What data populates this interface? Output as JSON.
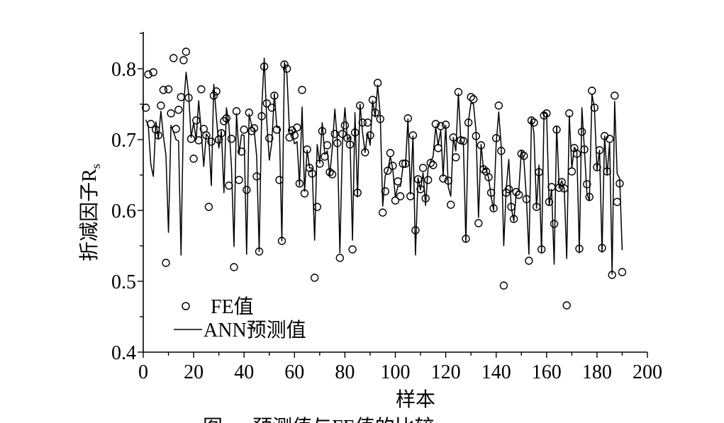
{
  "chart_data": {
    "type": "scatter",
    "xlabel": "样本",
    "ylabel": "折减因子R",
    "ylabel_sub": "s",
    "xlim": [
      0,
      200
    ],
    "ylim": [
      0.4,
      0.85
    ],
    "x_ticks": [
      "0",
      "20",
      "40",
      "60",
      "80",
      "100",
      "120",
      "140",
      "160",
      "180",
      "200"
    ],
    "y_ticks": [
      "0.4",
      "0.5",
      "0.6",
      "0.7",
      "0.8"
    ],
    "x_tick_values": [
      0,
      20,
      40,
      60,
      80,
      100,
      120,
      140,
      160,
      180,
      200
    ],
    "y_tick_values": [
      0.4,
      0.5,
      0.6,
      0.7,
      0.8
    ],
    "legend": [
      {
        "marker": "circle",
        "label": "FE值"
      },
      {
        "marker": "line",
        "label": "ANN预测值"
      }
    ],
    "caption_fragment": "图 … 预测值与FE值的比较",
    "series": [
      {
        "name": "FE值",
        "marker": "circle",
        "x": [
          1,
          2,
          3,
          4,
          5,
          6,
          7,
          8,
          9,
          10,
          11,
          12,
          13,
          14,
          15,
          16,
          17,
          18,
          19,
          20,
          21,
          22,
          23,
          24,
          25,
          26,
          27,
          28,
          29,
          30,
          31,
          32,
          33,
          34,
          35,
          36,
          37,
          38,
          39,
          40,
          41,
          42,
          43,
          44,
          45,
          46,
          47,
          48,
          49,
          50,
          51,
          52,
          53,
          54,
          55,
          56,
          57,
          58,
          59,
          60,
          61,
          62,
          63,
          64,
          65,
          66,
          67,
          68,
          69,
          70,
          71,
          72,
          73,
          74,
          75,
          76,
          77,
          78,
          79,
          80,
          81,
          82,
          83,
          84,
          85,
          86,
          87,
          88,
          89,
          90,
          91,
          92,
          93,
          94,
          95,
          96,
          97,
          98,
          99,
          100,
          101,
          102,
          103,
          104,
          105,
          106,
          107,
          108,
          109,
          110,
          111,
          112,
          113,
          114,
          115,
          116,
          117,
          118,
          119,
          120,
          121,
          122,
          123,
          124,
          125,
          126,
          127,
          128,
          129,
          130,
          131,
          132,
          133,
          134,
          135,
          136,
          137,
          138,
          139,
          140,
          141,
          142,
          143,
          144,
          145,
          146,
          147,
          148,
          149,
          150,
          151,
          152,
          153,
          154,
          155,
          156,
          157,
          158,
          159,
          160,
          161,
          162,
          163,
          164,
          165,
          166,
          167,
          168,
          169,
          170,
          171,
          172,
          173,
          174,
          175,
          176,
          177,
          178,
          179,
          180,
          181,
          182,
          183,
          184,
          185,
          186,
          187,
          188,
          189,
          190
        ],
        "y": [
          0.745,
          0.792,
          0.722,
          0.795,
          0.714,
          0.706,
          0.748,
          0.77,
          0.526,
          0.771,
          0.737,
          0.815,
          0.715,
          0.742,
          0.76,
          0.812,
          0.824,
          0.759,
          0.701,
          0.673,
          0.727,
          0.699,
          0.771,
          0.715,
          0.706,
          0.605,
          0.697,
          0.762,
          0.768,
          0.7,
          0.709,
          0.726,
          0.73,
          0.635,
          0.701,
          0.52,
          0.74,
          0.643,
          0.683,
          0.714,
          0.629,
          0.738,
          0.712,
          0.716,
          0.648,
          0.542,
          0.733,
          0.803,
          0.751,
          0.702,
          0.745,
          0.762,
          0.714,
          0.643,
          0.557,
          0.806,
          0.8,
          0.703,
          0.713,
          0.706,
          0.717,
          0.638,
          0.77,
          0.624,
          0.686,
          0.66,
          0.652,
          0.505,
          0.605,
          0.666,
          0.712,
          0.676,
          0.692,
          0.654,
          0.651,
          0.708,
          0.695,
          0.533,
          0.708,
          0.72,
          0.702,
          0.693,
          0.545,
          0.71,
          0.625,
          0.748,
          0.724,
          0.682,
          0.724,
          0.706,
          0.756,
          0.738,
          0.78,
          0.729,
          0.597,
          0.627,
          0.656,
          0.681,
          0.663,
          0.614,
          0.641,
          0.62,
          0.666,
          0.666,
          0.73,
          0.62,
          0.706,
          0.572,
          0.644,
          0.63,
          0.66,
          0.617,
          0.643,
          0.667,
          0.664,
          0.722,
          0.688,
          0.719,
          0.645,
          0.721,
          0.642,
          0.608,
          0.703,
          0.675,
          0.767,
          0.699,
          0.698,
          0.56,
          0.724,
          0.76,
          0.757,
          0.705,
          0.582,
          0.692,
          0.658,
          0.655,
          0.647,
          0.625,
          0.603,
          0.702,
          0.748,
          0.684,
          0.494,
          0.625,
          0.63,
          0.605,
          0.588,
          0.626,
          0.622,
          0.68,
          0.677,
          0.616,
          0.529,
          0.727,
          0.724,
          0.605,
          0.654,
          0.545,
          0.734,
          0.737,
          0.612,
          0.633,
          0.581,
          0.714,
          0.632,
          0.64,
          0.631,
          0.466,
          0.737,
          0.655,
          0.688,
          0.68,
          0.546,
          0.711,
          0.686,
          0.637,
          0.619,
          0.769,
          0.745,
          0.661,
          0.685,
          0.547,
          0.705,
          0.655,
          0.701,
          0.509,
          0.762,
          0.612,
          0.638,
          0.513
        ]
      },
      {
        "name": "ANN预测值",
        "marker": "line",
        "x": [
          1,
          2,
          3,
          4,
          5,
          6,
          7,
          8,
          9,
          10,
          11,
          12,
          13,
          14,
          15,
          16,
          17,
          18,
          19,
          20,
          21,
          22,
          23,
          24,
          25,
          26,
          27,
          28,
          29,
          30,
          31,
          32,
          33,
          34,
          35,
          36,
          37,
          38,
          39,
          40,
          41,
          42,
          43,
          44,
          45,
          46,
          47,
          48,
          49,
          50,
          51,
          52,
          53,
          54,
          55,
          56,
          57,
          58,
          59,
          60,
          61,
          62,
          63,
          64,
          65,
          66,
          67,
          68,
          69,
          70,
          71,
          72,
          73,
          74,
          75,
          76,
          77,
          78,
          79,
          80,
          81,
          82,
          83,
          84,
          85,
          86,
          87,
          88,
          89,
          90,
          91,
          92,
          93,
          94,
          95,
          96,
          97,
          98,
          99,
          100,
          101,
          102,
          103,
          104,
          105,
          106,
          107,
          108,
          109,
          110,
          111,
          112,
          113,
          114,
          115,
          116,
          117,
          118,
          119,
          120,
          121,
          122,
          123,
          124,
          125,
          126,
          127,
          128,
          129,
          130,
          131,
          132,
          133,
          134,
          135,
          136,
          137,
          138,
          139,
          140,
          141,
          142,
          143,
          144,
          145,
          146,
          147,
          148,
          149,
          150,
          151,
          152,
          153,
          154,
          155,
          156,
          157,
          158,
          159,
          160,
          161,
          162,
          163,
          164,
          165,
          166,
          167,
          168,
          169,
          170,
          171,
          172,
          173,
          174,
          175,
          176,
          177,
          178,
          179,
          180,
          181,
          182,
          183,
          184,
          185,
          186,
          187,
          188,
          189,
          190
        ],
        "y": [
          0.728,
          0.72,
          0.665,
          0.648,
          0.725,
          0.701,
          0.74,
          0.705,
          0.678,
          0.569,
          0.72,
          0.711,
          0.7,
          0.698,
          0.537,
          0.747,
          0.795,
          0.765,
          0.703,
          0.724,
          0.7,
          0.755,
          0.711,
          0.662,
          0.708,
          0.703,
          0.635,
          0.778,
          0.733,
          0.688,
          0.712,
          0.625,
          0.745,
          0.72,
          0.662,
          0.549,
          0.737,
          0.68,
          0.707,
          0.706,
          0.538,
          0.736,
          0.72,
          0.714,
          0.676,
          0.542,
          0.744,
          0.815,
          0.726,
          0.671,
          0.696,
          0.765,
          0.717,
          0.718,
          0.557,
          0.809,
          0.792,
          0.712,
          0.714,
          0.694,
          0.697,
          0.635,
          0.746,
          0.627,
          0.685,
          0.66,
          0.66,
          0.558,
          0.693,
          0.667,
          0.724,
          0.679,
          0.684,
          0.65,
          0.688,
          0.743,
          0.7,
          0.54,
          0.692,
          0.745,
          0.699,
          0.705,
          0.558,
          0.738,
          0.619,
          0.75,
          0.71,
          0.682,
          0.71,
          0.692,
          0.755,
          0.732,
          0.777,
          0.735,
          0.606,
          0.649,
          0.656,
          0.676,
          0.658,
          0.619,
          0.634,
          0.634,
          0.661,
          0.661,
          0.729,
          0.623,
          0.705,
          0.537,
          0.646,
          0.629,
          0.653,
          0.607,
          0.66,
          0.669,
          0.676,
          0.718,
          0.692,
          0.713,
          0.648,
          0.72,
          0.633,
          0.62,
          0.703,
          0.684,
          0.765,
          0.698,
          0.694,
          0.555,
          0.726,
          0.752,
          0.75,
          0.712,
          0.59,
          0.693,
          0.657,
          0.659,
          0.646,
          0.62,
          0.6,
          0.694,
          0.739,
          0.69,
          0.55,
          0.631,
          0.672,
          0.604,
          0.585,
          0.625,
          0.629,
          0.685,
          0.671,
          0.617,
          0.538,
          0.73,
          0.709,
          0.603,
          0.664,
          0.54,
          0.738,
          0.737,
          0.607,
          0.63,
          0.524,
          0.719,
          0.631,
          0.642,
          0.631,
          0.532,
          0.734,
          0.66,
          0.689,
          0.684,
          0.54,
          0.745,
          0.687,
          0.624,
          0.614,
          0.764,
          0.744,
          0.657,
          0.685,
          0.541,
          0.705,
          0.651,
          0.696,
          0.51,
          0.754,
          0.652,
          0.645,
          0.544
        ]
      }
    ]
  }
}
